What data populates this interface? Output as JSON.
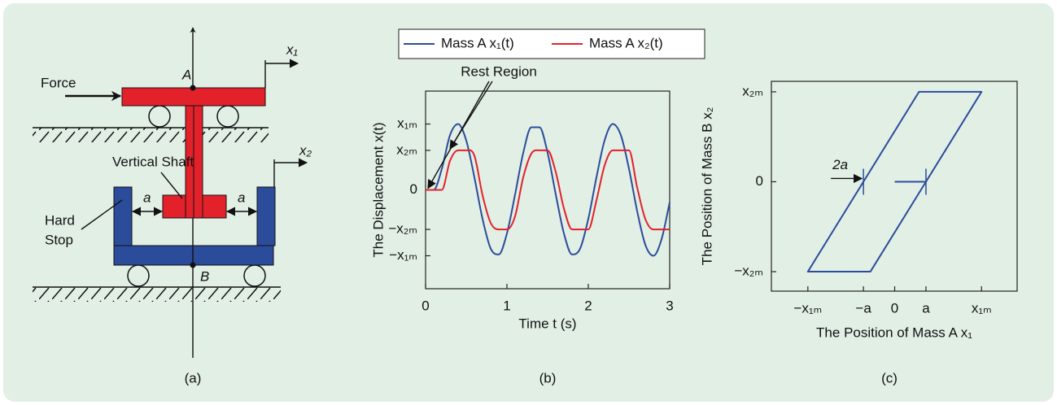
{
  "diagram": {
    "force": "Force",
    "point_a": "A",
    "x1": "x₁",
    "vertical_shaft": "Vertical Shaft",
    "x2": "x₂",
    "gap_left": "a",
    "gap_right": "a",
    "hard_stop": [
      "Hard",
      "Stop"
    ],
    "point_b": "B"
  },
  "captions": [
    "(a)",
    "(b)",
    "(c)"
  ],
  "chart_data": [
    {
      "type": "line",
      "x_label": "Time t (s)",
      "y_label": "The Displacement x(t)",
      "annotation": "Rest Region",
      "x": [
        0,
        0.1,
        0.2,
        0.3,
        0.4,
        0.5,
        0.6,
        0.7,
        0.8,
        0.9,
        1.0,
        1.1,
        1.2,
        1.3,
        1.4,
        1.5,
        1.6,
        1.7,
        1.8,
        1.9,
        2.0,
        2.1,
        2.2,
        2.3,
        2.4,
        2.5,
        2.6,
        2.7,
        2.8,
        2.9,
        3.0
      ],
      "series": [
        {
          "name": "Mass A x₁(t)",
          "color": "#2b4c9b",
          "values": [
            0,
            0,
            0.32,
            0.83,
            1.0,
            0.75,
            0.19,
            -0.44,
            -0.89,
            -0.98,
            -0.66,
            -0.07,
            0.56,
            0.95,
            0.95,
            0.56,
            -0.07,
            -0.66,
            -0.98,
            -0.89,
            -0.44,
            0.19,
            0.75,
            1.0,
            0.83,
            0.32,
            -0.32,
            -0.83,
            -1.0,
            -0.75,
            -0.19
          ]
        },
        {
          "name": "Mass A x₂(t)",
          "color": "#e3212b",
          "values": [
            0,
            0,
            0,
            0.44,
            0.6,
            0.6,
            0.52,
            -0.08,
            -0.5,
            -0.6,
            -0.6,
            -0.4,
            0.19,
            0.55,
            0.6,
            0.6,
            0.27,
            -0.28,
            -0.6,
            -0.6,
            -0.6,
            -0.16,
            0.37,
            0.6,
            0.6,
            0.6,
            0.04,
            -0.44,
            -0.6,
            -0.6,
            -0.6
          ]
        }
      ],
      "xlim": [
        0,
        3
      ],
      "xticks": [
        0,
        1,
        2,
        3
      ],
      "ylim": [
        -1.5,
        1.5
      ],
      "yticks": [
        {
          "value": -1,
          "label": "−x₁ₘ"
        },
        {
          "value": -0.6,
          "label": "−x₂ₘ"
        },
        0,
        {
          "value": 0.6,
          "label": "x₂ₘ"
        },
        {
          "value": 1,
          "label": "x₁ₘ"
        }
      ],
      "legend": "top"
    },
    {
      "type": "line",
      "x_label": "The Position of Mass A x₁",
      "y_label": "The Position of Mass B x₂",
      "annotation": "2a",
      "color": "#2b4c9b",
      "x": [
        0,
        0.36,
        1,
        0.28,
        -1,
        -0.28,
        0.36
      ],
      "values": [
        0,
        0,
        0.6,
        0.6,
        -0.6,
        -0.6,
        0
      ],
      "xlim": [
        -1.42,
        1.41
      ],
      "xticks": [
        {
          "value": -1,
          "label": "−x₁ₘ"
        },
        {
          "value": -0.36,
          "label": "−a"
        },
        0,
        {
          "value": 0.36,
          "label": "a"
        },
        {
          "value": 1,
          "label": "x₁ₘ"
        }
      ],
      "ylim": [
        -0.73,
        0.67
      ],
      "yticks": [
        {
          "value": -0.6,
          "label": "−x₂ₘ"
        },
        0,
        {
          "value": 0.6,
          "label": "x₂ₘ"
        }
      ]
    }
  ]
}
